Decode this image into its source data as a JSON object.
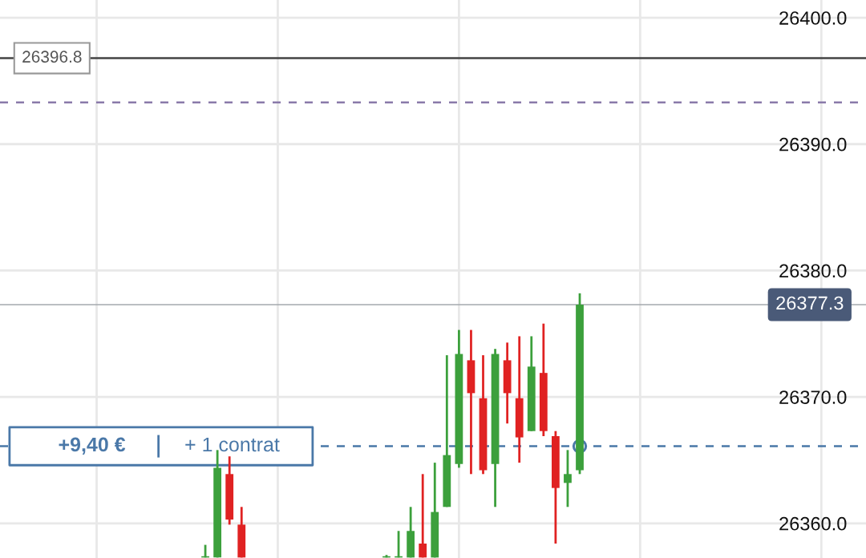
{
  "chart_data": {
    "type": "candlestick",
    "categories": [
      null,
      null,
      null,
      null,
      null,
      null,
      null,
      null,
      null,
      null,
      null,
      null,
      null,
      null,
      null,
      null,
      null,
      null,
      null,
      null,
      null,
      null,
      null,
      null,
      null,
      null,
      null,
      null,
      null,
      null,
      null,
      null,
      null,
      null,
      null,
      null,
      null,
      null,
      null,
      null,
      null,
      null,
      null,
      null,
      null,
      null,
      null,
      null,
      null,
      null,
      null,
      null,
      null,
      null,
      null,
      null,
      null,
      null,
      null,
      null,
      null,
      null,
      null,
      null,
      null,
      null,
      null,
      null,
      null,
      null,
      null,
      null
    ],
    "ohlc": [
      null,
      null,
      null,
      null,
      null,
      null,
      null,
      null,
      null,
      null,
      null,
      null,
      null,
      null,
      null,
      null,
      null,
      [
        26357.3,
        26358.3,
        26357.3,
        26357.4
      ],
      [
        26357.3,
        26365.8,
        26357.3,
        26364.4
      ],
      [
        26363.9,
        26365.3,
        26359.9,
        26360.3
      ],
      [
        26359.9,
        26361.3,
        26357.3,
        26357.3
      ],
      null,
      null,
      null,
      null,
      null,
      null,
      null,
      null,
      null,
      null,
      null,
      [
        26357.3,
        26357.5,
        26357.3,
        26357.4
      ],
      [
        26357.3,
        26359.4,
        26357.3,
        26357.4
      ],
      [
        26357.3,
        26361.3,
        26357.3,
        26359.4
      ],
      [
        26358.4,
        26363.9,
        26357.3,
        26357.3
      ],
      [
        26357.3,
        26364.8,
        26357.3,
        26360.9
      ],
      [
        26361.3,
        26373.3,
        26361.3,
        26365.4
      ],
      [
        26364.7,
        26375.3,
        26364.4,
        26373.4
      ],
      [
        26372.9,
        26375.3,
        26363.9,
        26370.3
      ],
      [
        26369.9,
        26373.3,
        26363.9,
        26364.2
      ],
      [
        26364.7,
        26373.8,
        26361.3,
        26373.4
      ],
      [
        26372.9,
        26374.3,
        26367.9,
        26370.3
      ],
      [
        26369.9,
        26374.8,
        26364.8,
        26366.8
      ],
      [
        26367.3,
        26374.8,
        26367.3,
        26372.4
      ],
      [
        26371.9,
        26375.8,
        26366.9,
        26367.3
      ],
      [
        26366.9,
        26367.3,
        26358.4,
        26362.8
      ],
      [
        26363.2,
        26365.8,
        26361.3,
        26363.9
      ],
      [
        26364.2,
        26378.2,
        26363.9,
        26377.3
      ],
      null,
      null,
      null,
      null,
      null,
      null,
      null,
      null,
      null,
      null,
      null,
      null,
      null,
      null,
      null,
      null,
      null,
      null,
      null,
      null,
      null,
      null,
      null
    ],
    "colors": [
      null,
      null,
      null,
      null,
      null,
      null,
      null,
      null,
      null,
      null,
      null,
      null,
      null,
      null,
      null,
      null,
      null,
      "#3ca03c",
      "#3ca03c",
      "#e02222",
      "#e02222",
      null,
      null,
      null,
      null,
      null,
      null,
      null,
      null,
      null,
      null,
      null,
      "#3ca03c",
      "#3ca03c",
      "#3ca03c",
      "#e02222",
      "#3ca03c",
      "#3ca03c",
      "#3ca03c",
      "#e02222",
      "#e02222",
      "#3ca03c",
      "#e02222",
      "#e02222",
      "#3ca03c",
      "#e02222",
      "#e02222",
      "#3ca03c",
      "#3ca03c",
      null,
      null,
      null,
      null,
      null,
      null,
      null,
      null,
      null,
      null,
      null,
      null,
      null,
      null,
      null,
      null,
      null,
      null,
      null,
      null,
      null,
      null,
      null
    ],
    "ylim": [
      26357.26,
      26401.4
    ],
    "yticks": [
      {
        "value": 26360,
        "label": "26360.0"
      },
      {
        "value": 26370,
        "label": "26370.0"
      },
      {
        "value": 26380,
        "label": "26380.0"
      },
      {
        "value": 26390,
        "label": "26390.0"
      },
      {
        "value": 26400,
        "label": "26400.0"
      }
    ],
    "grid": true,
    "tick_labels": "y",
    "ref_lines": [
      {
        "axis": "y",
        "value": 26396.8,
        "label": "26396.8",
        "color": "#444444",
        "line_style": "solid"
      },
      {
        "axis": "y",
        "value": 26393.3,
        "color": "#8a7aaa",
        "line_style": "dashed"
      },
      {
        "axis": "y",
        "value": 26377.3,
        "label": "26377.3",
        "color": "#a4a8ae",
        "line_style": "solid"
      },
      {
        "axis": "y",
        "value": 26366.1,
        "label": "+9,40 €",
        "color": "#4a78a8",
        "line_style": "dashed"
      }
    ],
    "annotations": [
      "+ 1 contrat"
    ]
  }
}
